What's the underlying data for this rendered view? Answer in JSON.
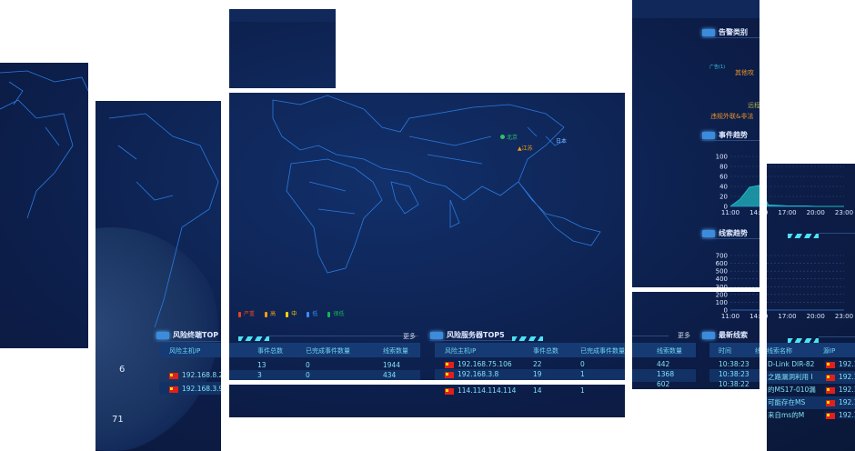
{
  "map": {
    "legend": [
      {
        "label": "严重",
        "color": "#e8431c"
      },
      {
        "label": "高",
        "color": "#f29b12"
      },
      {
        "label": "中",
        "color": "#ffd400"
      },
      {
        "label": "低",
        "color": "#3b8cff"
      },
      {
        "label": "很低",
        "color": "#18b35b"
      }
    ],
    "markers": [
      {
        "label": "北京",
        "color": "#34c06b"
      },
      {
        "label": "江苏",
        "color": "#f29b12"
      }
    ],
    "country_label": "日本",
    "stat_values": [
      "6",
      "71"
    ]
  },
  "terminal_top": {
    "title": "风险终端TOP",
    "more": "更多",
    "columns": [
      "风险主机IP",
      "事件总数",
      "已完成事件数量",
      "线索数量"
    ],
    "rows": [
      [
        "192.168.8.20",
        "13",
        "0",
        "1944"
      ],
      [
        "192.168.3.9",
        "3",
        "0",
        "434"
      ]
    ]
  },
  "server_top": {
    "title": "风险服务器TOP5",
    "more": "更多",
    "columns": [
      "风险主机IP",
      "事件总数",
      "已完成事件数量",
      "线索数量"
    ],
    "rows": [
      [
        "192.168.75.106",
        "22",
        "0",
        "442"
      ],
      [
        "192.168.3.8",
        "19",
        "1",
        "1368"
      ],
      [
        "114.114.114.114",
        "14",
        "1",
        "602"
      ]
    ]
  },
  "alarm_category": {
    "title": "告警类别",
    "labels": [
      {
        "text": "广告(1)",
        "color": "#3fc4e6"
      },
      {
        "text": "其他攻",
        "color": "#e9932a"
      },
      {
        "text": "远程",
        "color": "#a8a84a"
      },
      {
        "text": "违规外联&非法",
        "color": "#e9932a"
      }
    ]
  },
  "latest_clues": {
    "title": "最新线索",
    "columns": [
      "时间",
      "线索名称",
      "源IP"
    ],
    "rows": [
      [
        "10:38:23",
        "D-Link DIR-82",
        "192.1"
      ],
      [
        "10:38:23",
        "之路漏洞利用 I",
        "192.1"
      ],
      [
        "10:38:22",
        "的MS17-010漏",
        "192.1"
      ],
      [
        "",
        "可能存在MS",
        "192.1"
      ],
      [
        "",
        "来自ms的M",
        "192.1"
      ]
    ]
  },
  "chart_data": [
    {
      "type": "area",
      "title": "事件趋势",
      "x": [
        "11:00",
        "12:00",
        "13:00",
        "14:00",
        "15:00",
        "16:00",
        "17:00",
        "18:00",
        "19:00",
        "20:00",
        "21:00",
        "22:00",
        "23:00"
      ],
      "x_ticks": [
        "11:00",
        "14:00",
        "17:00",
        "20:00",
        "23:00"
      ],
      "values": [
        0,
        14,
        38,
        42,
        3,
        2,
        1,
        1,
        1,
        0,
        0,
        0,
        0
      ],
      "y_ticks": [
        "0",
        "20",
        "40",
        "60",
        "80",
        "100"
      ],
      "ylim": [
        0,
        100
      ],
      "grid": true,
      "color": "#1fb7c0"
    },
    {
      "type": "area",
      "title": "线索趋势",
      "x_ticks": [
        "11:00",
        "14:00",
        "17:00",
        "20:00",
        "23:00"
      ],
      "y_ticks": [
        "0",
        "100",
        "200",
        "300",
        "400",
        "500",
        "600",
        "700"
      ],
      "ylim": [
        0,
        700
      ],
      "grid": true
    }
  ]
}
